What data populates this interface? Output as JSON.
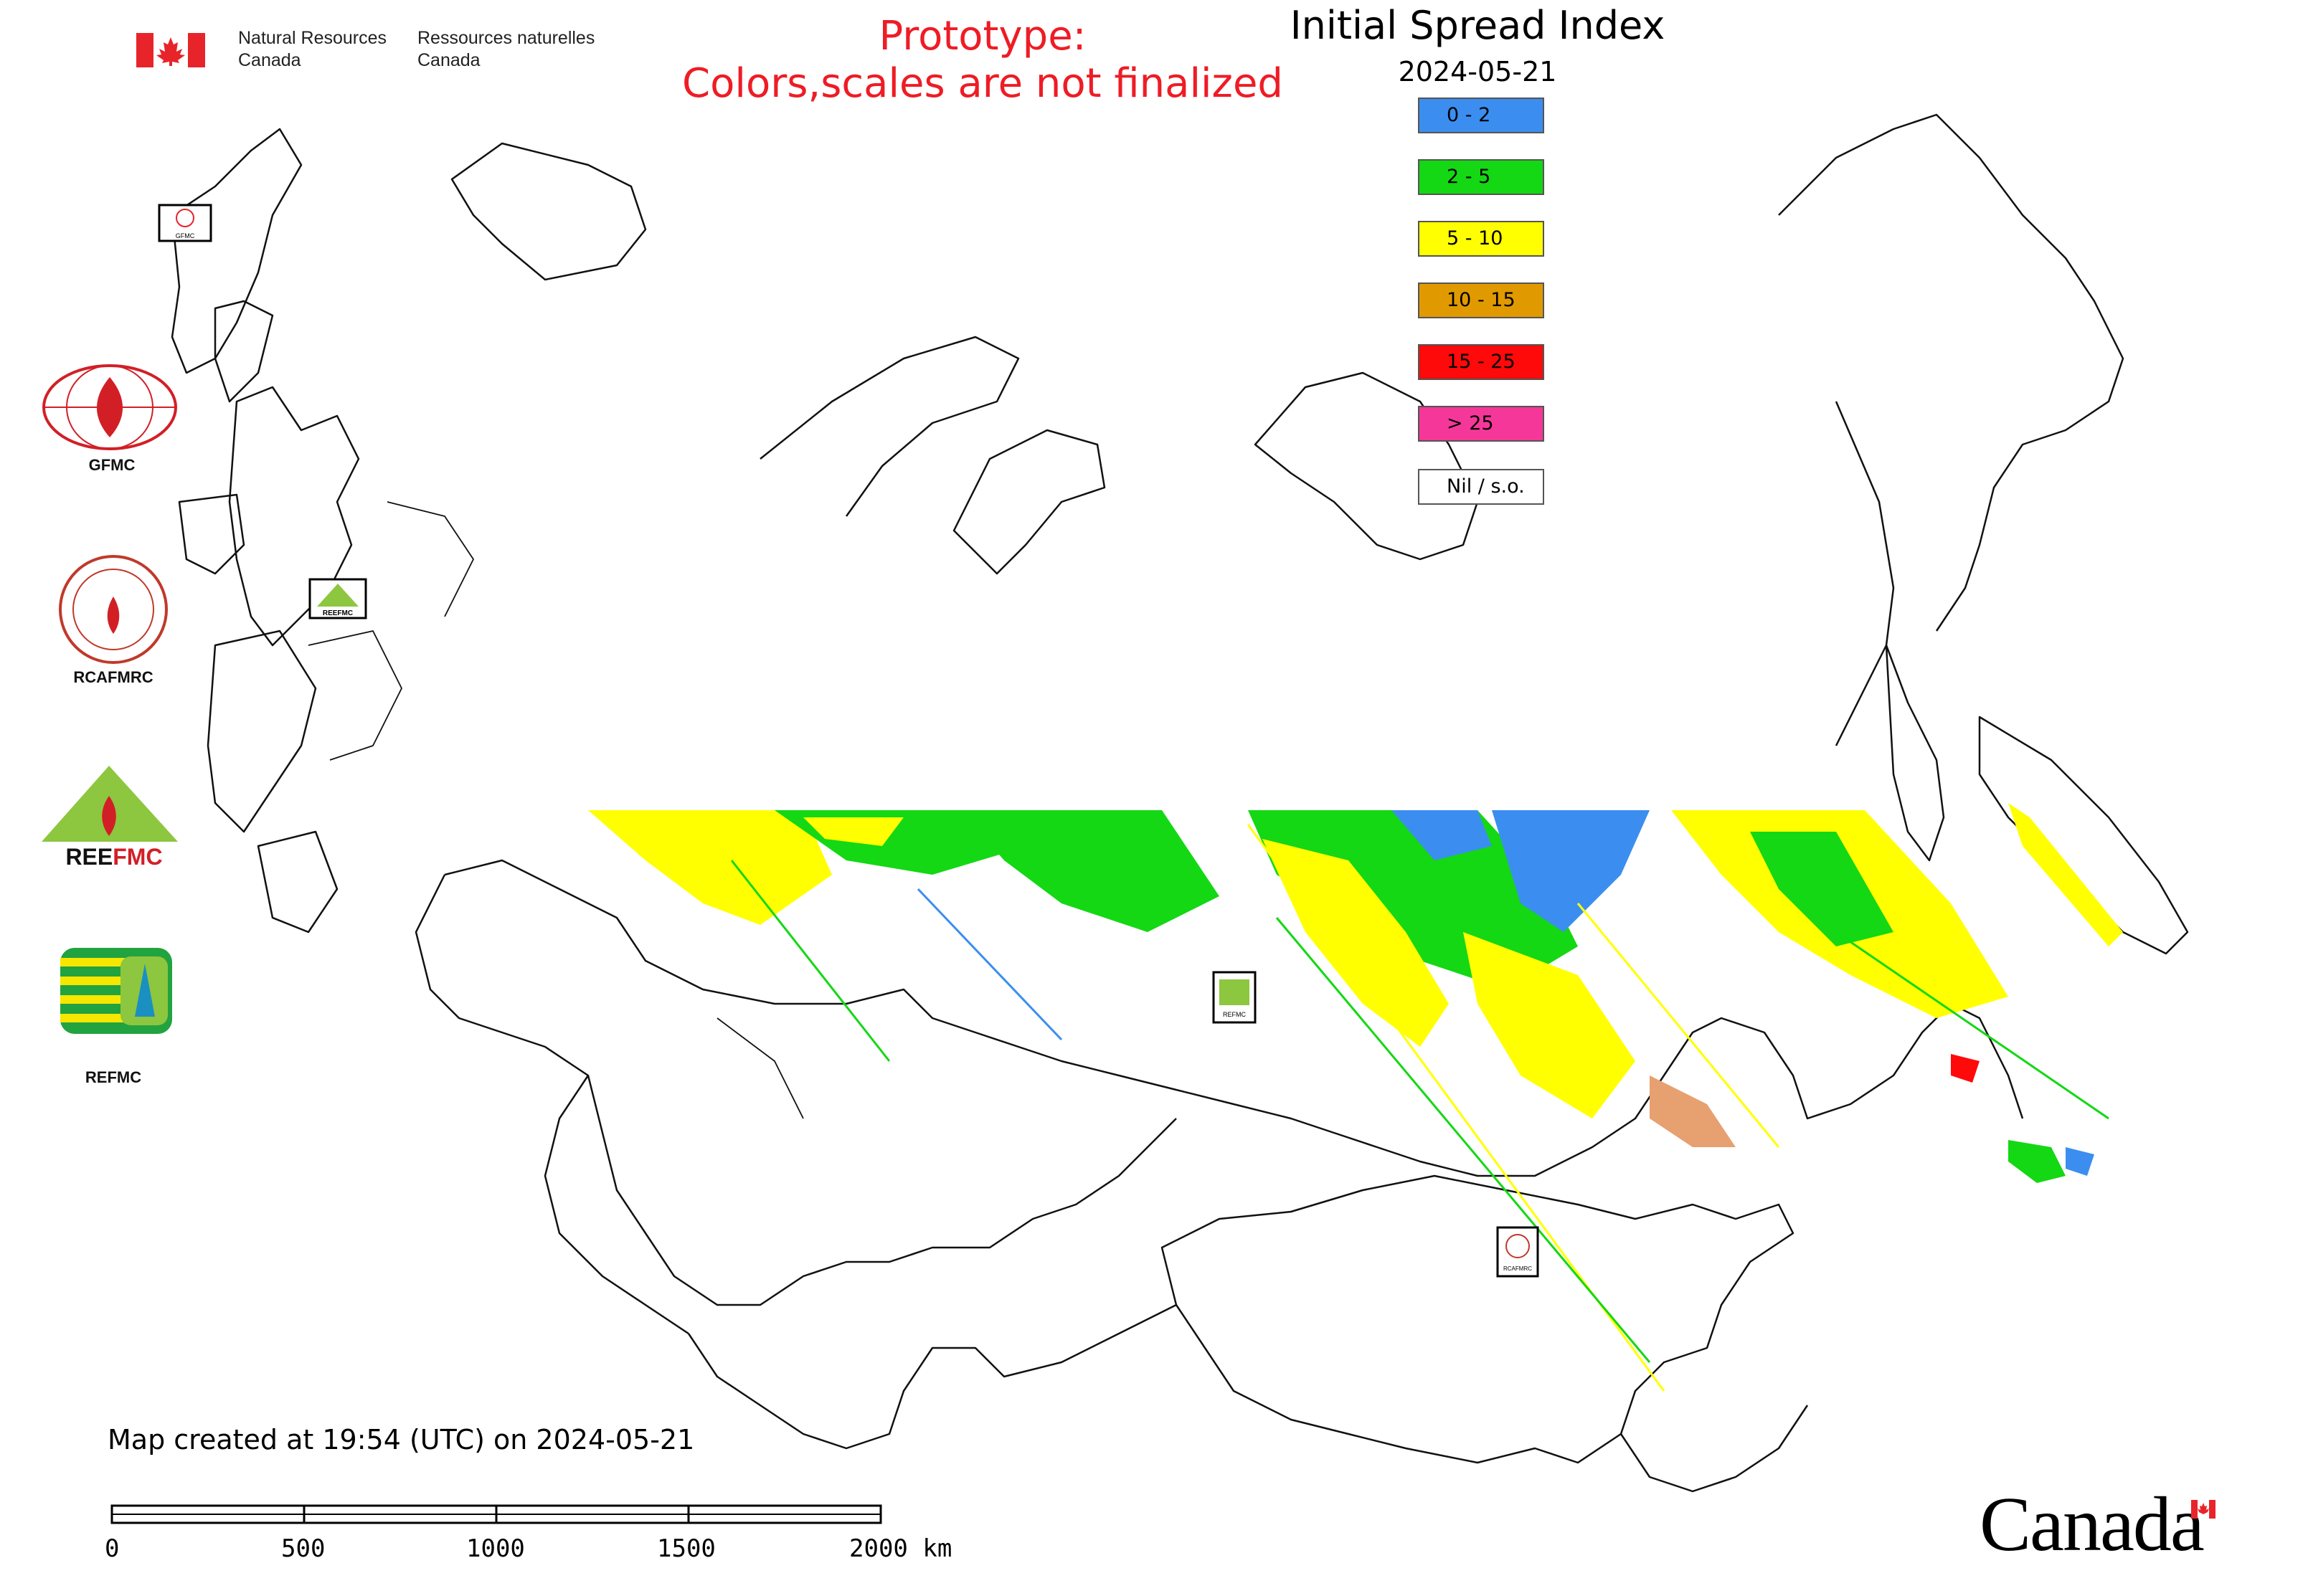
{
  "header": {
    "dept_en_line1": "Natural Resources",
    "dept_en_line2": "Canada",
    "dept_fr_line1": "Ressources naturelles",
    "dept_fr_line2": "Canada"
  },
  "prototype_note": {
    "line1": "Prototype:",
    "line2": "Colors,scales are not finalized",
    "color": "#ee1c25"
  },
  "map": {
    "title": "Initial Spread Index",
    "date": "2024-05-21",
    "legend": [
      {
        "label": "0 - 2",
        "color": "#3b8ef0"
      },
      {
        "label": "2 - 5",
        "color": "#13d813"
      },
      {
        "label": "5 - 10",
        "color": "#ffff00"
      },
      {
        "label": "10 - 15",
        "color": "#e09a00"
      },
      {
        "label": "15 - 25",
        "color": "#ff0a0a"
      },
      {
        "label": "> 25",
        "color": "#f5379a"
      },
      {
        "label": "Nil / s.o.",
        "color": "#ffffff"
      }
    ]
  },
  "logos": [
    {
      "label": "GFMC",
      "icon": "gfmc-logo"
    },
    {
      "label": "RCAFMRC",
      "icon": "rcafmrc-logo"
    },
    {
      "label": "REEFMC",
      "icon": "reefmc-logo"
    },
    {
      "label": "REFMC",
      "icon": "refmc-logo"
    }
  ],
  "map_markers": [
    {
      "label": "GFMC"
    },
    {
      "label": "REEFMC"
    },
    {
      "label": "REFMC"
    },
    {
      "label": "RCAFMRC"
    }
  ],
  "footer": {
    "created_note": "Map created at 19:54 (UTC) on 2024-05-21",
    "scale_ticks": [
      "0",
      "500",
      "1000",
      "1500",
      "2000 km"
    ],
    "wordmark": "Canada"
  }
}
